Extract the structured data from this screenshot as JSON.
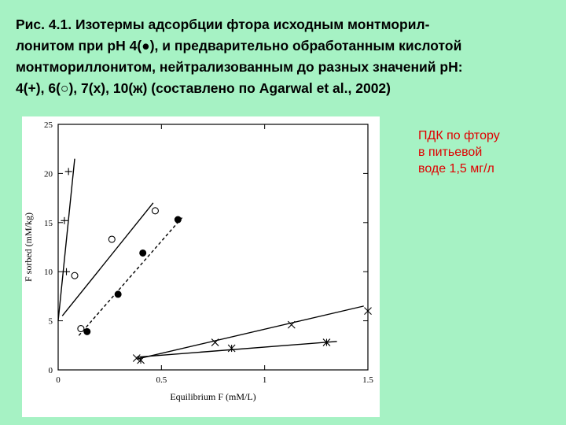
{
  "caption": {
    "lines": [
      "Рис. 4.1. Изотермы адсорбции фтора исходным монтморил-",
      "лонитом при pH 4(●), и предварительно обработанным кислотой",
      "монтмориллонитом, нейтрализованным до разных значений pH:",
      "4(+), 6(○), 7(х), 10(ж) (составлено по Agarwal et al., 2002)"
    ]
  },
  "note": {
    "lines": [
      "ПДК по фтору",
      "в питьевой",
      "воде 1,5 мг/л"
    ],
    "color": "#e00000"
  },
  "chart_data": {
    "type": "scatter",
    "xlabel": "Equilibrium F (mM/L)",
    "ylabel": "F sorbed (mM/kg)",
    "xlim": [
      0,
      1.5
    ],
    "ylim": [
      0,
      25
    ],
    "xticks": [
      0,
      0.5,
      1.0,
      1.5
    ],
    "xtick_labels": [
      "0",
      "0.5",
      "1",
      "1.5"
    ],
    "yticks": [
      0,
      5,
      10,
      15,
      20,
      25
    ],
    "ytick_labels": [
      "0",
      "5",
      "10",
      "15",
      "20",
      "25"
    ],
    "grid": false,
    "series": [
      {
        "marker": "plus",
        "points": [
          [
            0.05,
            20.2
          ],
          [
            0.03,
            15.2
          ],
          [
            0.04,
            10.0
          ]
        ],
        "fit": [
          [
            0.0,
            5.0
          ],
          [
            0.08,
            21.5
          ]
        ],
        "fit_style": "solid"
      },
      {
        "marker": "circle-open",
        "points": [
          [
            0.11,
            4.2
          ],
          [
            0.08,
            9.6
          ],
          [
            0.26,
            13.3
          ],
          [
            0.47,
            16.2
          ]
        ],
        "fit": [
          [
            0.02,
            5.5
          ],
          [
            0.46,
            17.0
          ]
        ],
        "fit_style": "solid"
      },
      {
        "marker": "circle-filled",
        "points": [
          [
            0.14,
            3.9
          ],
          [
            0.29,
            7.7
          ],
          [
            0.41,
            11.9
          ],
          [
            0.58,
            15.3
          ]
        ],
        "fit": [
          [
            0.1,
            3.5
          ],
          [
            0.6,
            15.5
          ]
        ],
        "fit_style": "dashed"
      },
      {
        "marker": "x",
        "points": [
          [
            0.38,
            1.2
          ],
          [
            0.76,
            2.8
          ],
          [
            1.13,
            4.6
          ],
          [
            1.5,
            6.0
          ]
        ],
        "fit": [
          [
            0.38,
            1.1
          ],
          [
            1.48,
            6.5
          ]
        ],
        "fit_style": "solid"
      },
      {
        "marker": "asterisk",
        "points": [
          [
            0.4,
            1.0
          ],
          [
            0.84,
            2.2
          ],
          [
            1.3,
            2.8
          ]
        ],
        "fit": [
          [
            0.38,
            1.3
          ],
          [
            1.35,
            2.9
          ]
        ],
        "fit_style": "solid"
      }
    ]
  }
}
